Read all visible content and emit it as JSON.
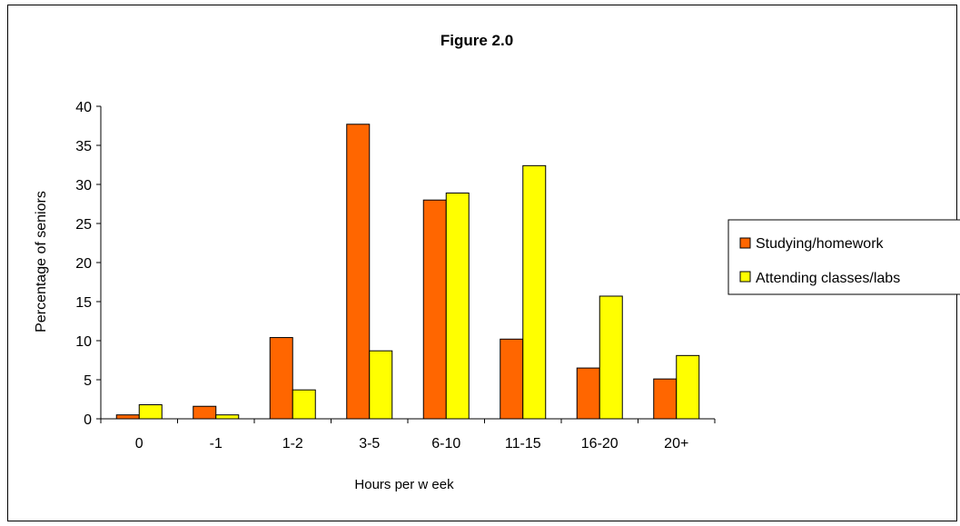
{
  "chart_data": {
    "type": "bar",
    "title": "Figure 2.0",
    "xlabel": "Hours per w eek",
    "ylabel": "Percentage of seniors",
    "categories": [
      "0",
      "-1",
      "1-2",
      "3-5",
      "6-10",
      "11-15",
      "16-20",
      "20+"
    ],
    "ylim": [
      0,
      40
    ],
    "yticks": [
      0,
      5,
      10,
      15,
      20,
      25,
      30,
      35,
      40
    ],
    "grid": false,
    "legend_position": "right",
    "series": [
      {
        "name": "Studying/homework",
        "color": "#FF6600",
        "values": [
          0.5,
          1.6,
          10.4,
          37.7,
          28.0,
          10.2,
          6.5,
          5.1
        ]
      },
      {
        "name": "Attending classes/labs",
        "color": "#FFFF00",
        "values": [
          1.8,
          0.5,
          3.7,
          8.7,
          28.9,
          32.4,
          15.7,
          8.1
        ]
      }
    ]
  }
}
